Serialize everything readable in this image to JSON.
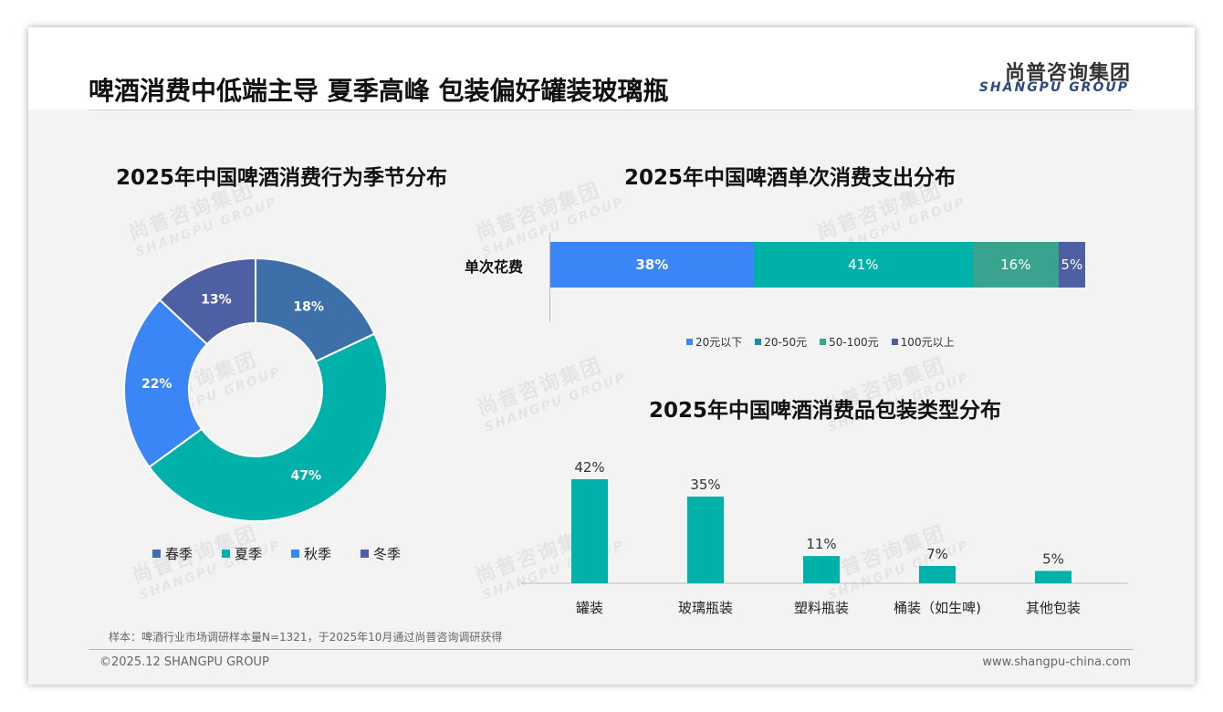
{
  "header": {
    "title": "啤酒消费中低端主导 夏季高峰 包装偏好罐装玻璃瓶",
    "brand_cn": "尚普咨询集团",
    "brand_en": "SHANGPU GROUP"
  },
  "watermark": {
    "cn": "尚普咨询集团",
    "en": "SHANGPU GROUP"
  },
  "footer": {
    "sample": "样本：啤酒行业市场调研样本量N=1321，于2025年10月通过尚普咨询调研获得",
    "copyright": "©2025.12 SHANGPU GROUP",
    "website": "www.shangpu-china.com"
  },
  "chart_data": [
    {
      "type": "pie",
      "title": "2025年中国啤酒消费行为季节分布",
      "categories": [
        "春季",
        "夏季",
        "秋季",
        "冬季"
      ],
      "values": [
        18,
        47,
        22,
        13
      ],
      "labels": [
        "18%",
        "47%",
        "22%",
        "13%"
      ],
      "colors": [
        "#3d6fa8",
        "#00b1a9",
        "#3b86f7",
        "#4f5fa3"
      ],
      "legend": "bottom"
    },
    {
      "type": "bar",
      "stacked": true,
      "orientation": "horizontal",
      "title": "2025年中国啤酒单次消费支出分布",
      "categories": [
        "单次花费"
      ],
      "series": [
        {
          "name": "20元以下",
          "values": [
            38
          ],
          "label": "38%",
          "color": "#3b86f7"
        },
        {
          "name": "20-50元",
          "values": [
            41
          ],
          "label": "41%",
          "color": "#00b1a9"
        },
        {
          "name": "50-100元",
          "values": [
            16
          ],
          "label": "16%",
          "color": "#3aa38f"
        },
        {
          "name": "100元以上",
          "values": [
            5
          ],
          "label": "5%",
          "color": "#4f5fa3"
        }
      ],
      "legend_colors": [
        "#3b86f7",
        "#1f8aa8",
        "#3aa38f",
        "#4f5fa3"
      ],
      "legend": "bottom"
    },
    {
      "type": "bar",
      "title": "2025年中国啤酒消费品包装类型分布",
      "categories": [
        "罐装",
        "玻璃瓶装",
        "塑料瓶装",
        "桶装（如生啤)",
        "其他包装"
      ],
      "values": [
        42,
        35,
        11,
        7,
        5
      ],
      "labels": [
        "42%",
        "35%",
        "11%",
        "7%",
        "5%"
      ],
      "color": "#00b1a9",
      "ylim": [
        0,
        45
      ]
    }
  ]
}
